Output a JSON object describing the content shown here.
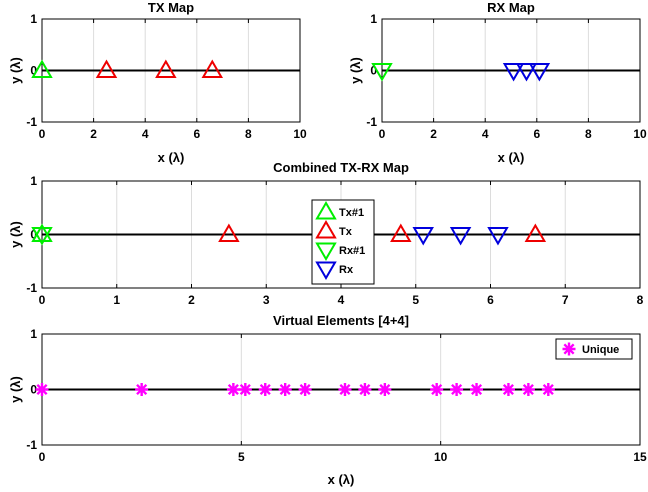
{
  "chart_data": [
    {
      "type": "scatter",
      "title": "TX Map",
      "xlabel": "x (λ)",
      "ylabel": "y (λ)",
      "xlim": [
        0,
        10
      ],
      "ylim": [
        -1,
        1
      ],
      "xticks": [
        "0",
        "2",
        "4",
        "6",
        "8",
        "10"
      ],
      "yticks": [
        "-1",
        "0",
        "1"
      ],
      "grid": true,
      "series": [
        {
          "marker": "triangle-up",
          "color": "#00ee00",
          "x": [
            0
          ],
          "y": [
            0
          ]
        },
        {
          "marker": "triangle-up",
          "color": "#ee0000",
          "x": [
            2.5,
            4.8,
            6.6
          ],
          "y": [
            0,
            0,
            0
          ]
        }
      ]
    },
    {
      "type": "scatter",
      "title": "RX Map",
      "xlabel": "x (λ)",
      "ylabel": "y (λ)",
      "xlim": [
        0,
        10
      ],
      "ylim": [
        -1,
        1
      ],
      "xticks": [
        "0",
        "2",
        "4",
        "6",
        "8",
        "10"
      ],
      "yticks": [
        "-1",
        "0",
        "1"
      ],
      "grid": true,
      "series": [
        {
          "marker": "triangle-down",
          "color": "#00ee00",
          "x": [
            0
          ],
          "y": [
            0
          ]
        },
        {
          "marker": "triangle-down",
          "color": "#0000dd",
          "x": [
            5.1,
            5.6,
            6.1
          ],
          "y": [
            0,
            0,
            0
          ]
        }
      ]
    },
    {
      "type": "scatter",
      "title": "Combined TX-RX Map",
      "xlabel": "",
      "ylabel": "y (λ)",
      "xlim": [
        0,
        8
      ],
      "ylim": [
        -1,
        1
      ],
      "xticks": [
        "0",
        "1",
        "2",
        "3",
        "4",
        "5",
        "6",
        "7",
        "8"
      ],
      "yticks": [
        "-1",
        "0",
        "1"
      ],
      "grid": true,
      "legend": "center",
      "series": [
        {
          "name": "Tx#1",
          "marker": "triangle-up",
          "color": "#00ee00",
          "x": [
            0
          ],
          "y": [
            0
          ]
        },
        {
          "name": "Tx",
          "marker": "triangle-up",
          "color": "#ee0000",
          "x": [
            2.5,
            4.8,
            6.6
          ],
          "y": [
            0,
            0,
            0
          ]
        },
        {
          "name": "Rx#1",
          "marker": "triangle-down",
          "color": "#00ee00",
          "x": [
            0
          ],
          "y": [
            0
          ]
        },
        {
          "name": "Rx",
          "marker": "triangle-down",
          "color": "#0000dd",
          "x": [
            5.1,
            5.6,
            6.1
          ],
          "y": [
            0,
            0,
            0
          ]
        }
      ]
    },
    {
      "type": "scatter",
      "title": "Virtual Elements [4+4]",
      "xlabel": "x (λ)",
      "ylabel": "y (λ)",
      "xlim": [
        0,
        15
      ],
      "ylim": [
        -1,
        1
      ],
      "xticks": [
        "0",
        "5",
        "10",
        "15"
      ],
      "yticks": [
        "-1",
        "0",
        "1"
      ],
      "grid": true,
      "legend": "top-right",
      "series": [
        {
          "name": "Unique",
          "marker": "asterisk",
          "color": "#ff00ff",
          "x": [
            0,
            2.5,
            4.8,
            5.1,
            5.6,
            6.1,
            6.6,
            7.6,
            8.1,
            8.6,
            9.9,
            10.4,
            10.9,
            11.7,
            12.2,
            12.7
          ],
          "y": [
            0,
            0,
            0,
            0,
            0,
            0,
            0,
            0,
            0,
            0,
            0,
            0,
            0,
            0,
            0,
            0
          ]
        }
      ]
    }
  ]
}
